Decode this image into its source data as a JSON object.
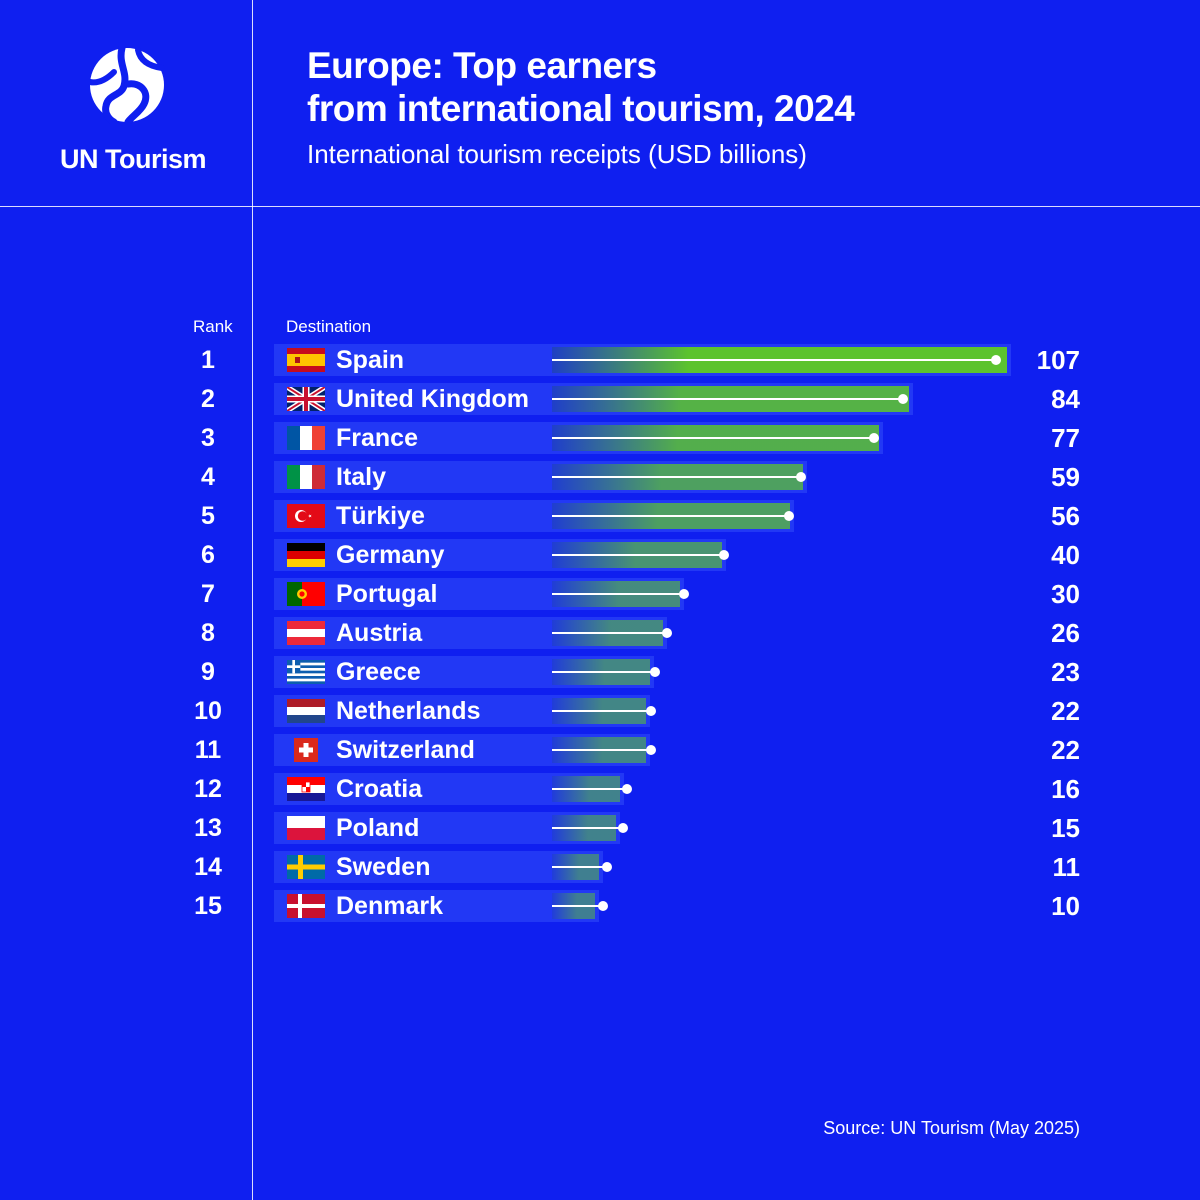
{
  "brand": {
    "name": "UN Tourism"
  },
  "header": {
    "title_line1": "Europe: Top earners",
    "title_line2": "from international tourism, 2024",
    "subtitle": "International tourism receipts (USD billions)"
  },
  "columns": {
    "rank": "Rank",
    "destination": "Destination"
  },
  "source": "Source: UN Tourism (May 2025)",
  "colors": {
    "background": "#0f1ff0",
    "row_bar": "#2238f5",
    "bar_high": "#5cc32e",
    "bar_low": "#1f3fc4"
  },
  "chart_data": {
    "type": "bar",
    "orientation": "horizontal",
    "title": "Europe: Top earners from international tourism, 2024",
    "subtitle": "International tourism receipts (USD billions)",
    "categories": [
      "Spain",
      "United Kingdom",
      "France",
      "Italy",
      "Türkiye",
      "Germany",
      "Portugal",
      "Austria",
      "Greece",
      "Netherlands",
      "Switzerland",
      "Croatia",
      "Poland",
      "Sweden",
      "Denmark"
    ],
    "ranks": [
      "1",
      "2",
      "3",
      "4",
      "5",
      "6",
      "7",
      "8",
      "9",
      "10",
      "11",
      "12",
      "13",
      "14",
      "15"
    ],
    "values": [
      107,
      84,
      77,
      59,
      56,
      40,
      30,
      26,
      23,
      22,
      22,
      16,
      15,
      11,
      10
    ],
    "value_labels": [
      "107",
      "84",
      "77",
      "59",
      "56",
      "40",
      "30",
      "26",
      "23",
      "22",
      "22",
      "16",
      "15",
      "11",
      "10"
    ],
    "flags": [
      "spain-flag-icon",
      "united-kingdom-flag-icon",
      "france-flag-icon",
      "italy-flag-icon",
      "turkiye-flag-icon",
      "germany-flag-icon",
      "portugal-flag-icon",
      "austria-flag-icon",
      "greece-flag-icon",
      "netherlands-flag-icon",
      "switzerland-flag-icon",
      "croatia-flag-icon",
      "poland-flag-icon",
      "sweden-flag-icon",
      "denmark-flag-icon"
    ],
    "xlim": [
      0,
      107
    ]
  }
}
